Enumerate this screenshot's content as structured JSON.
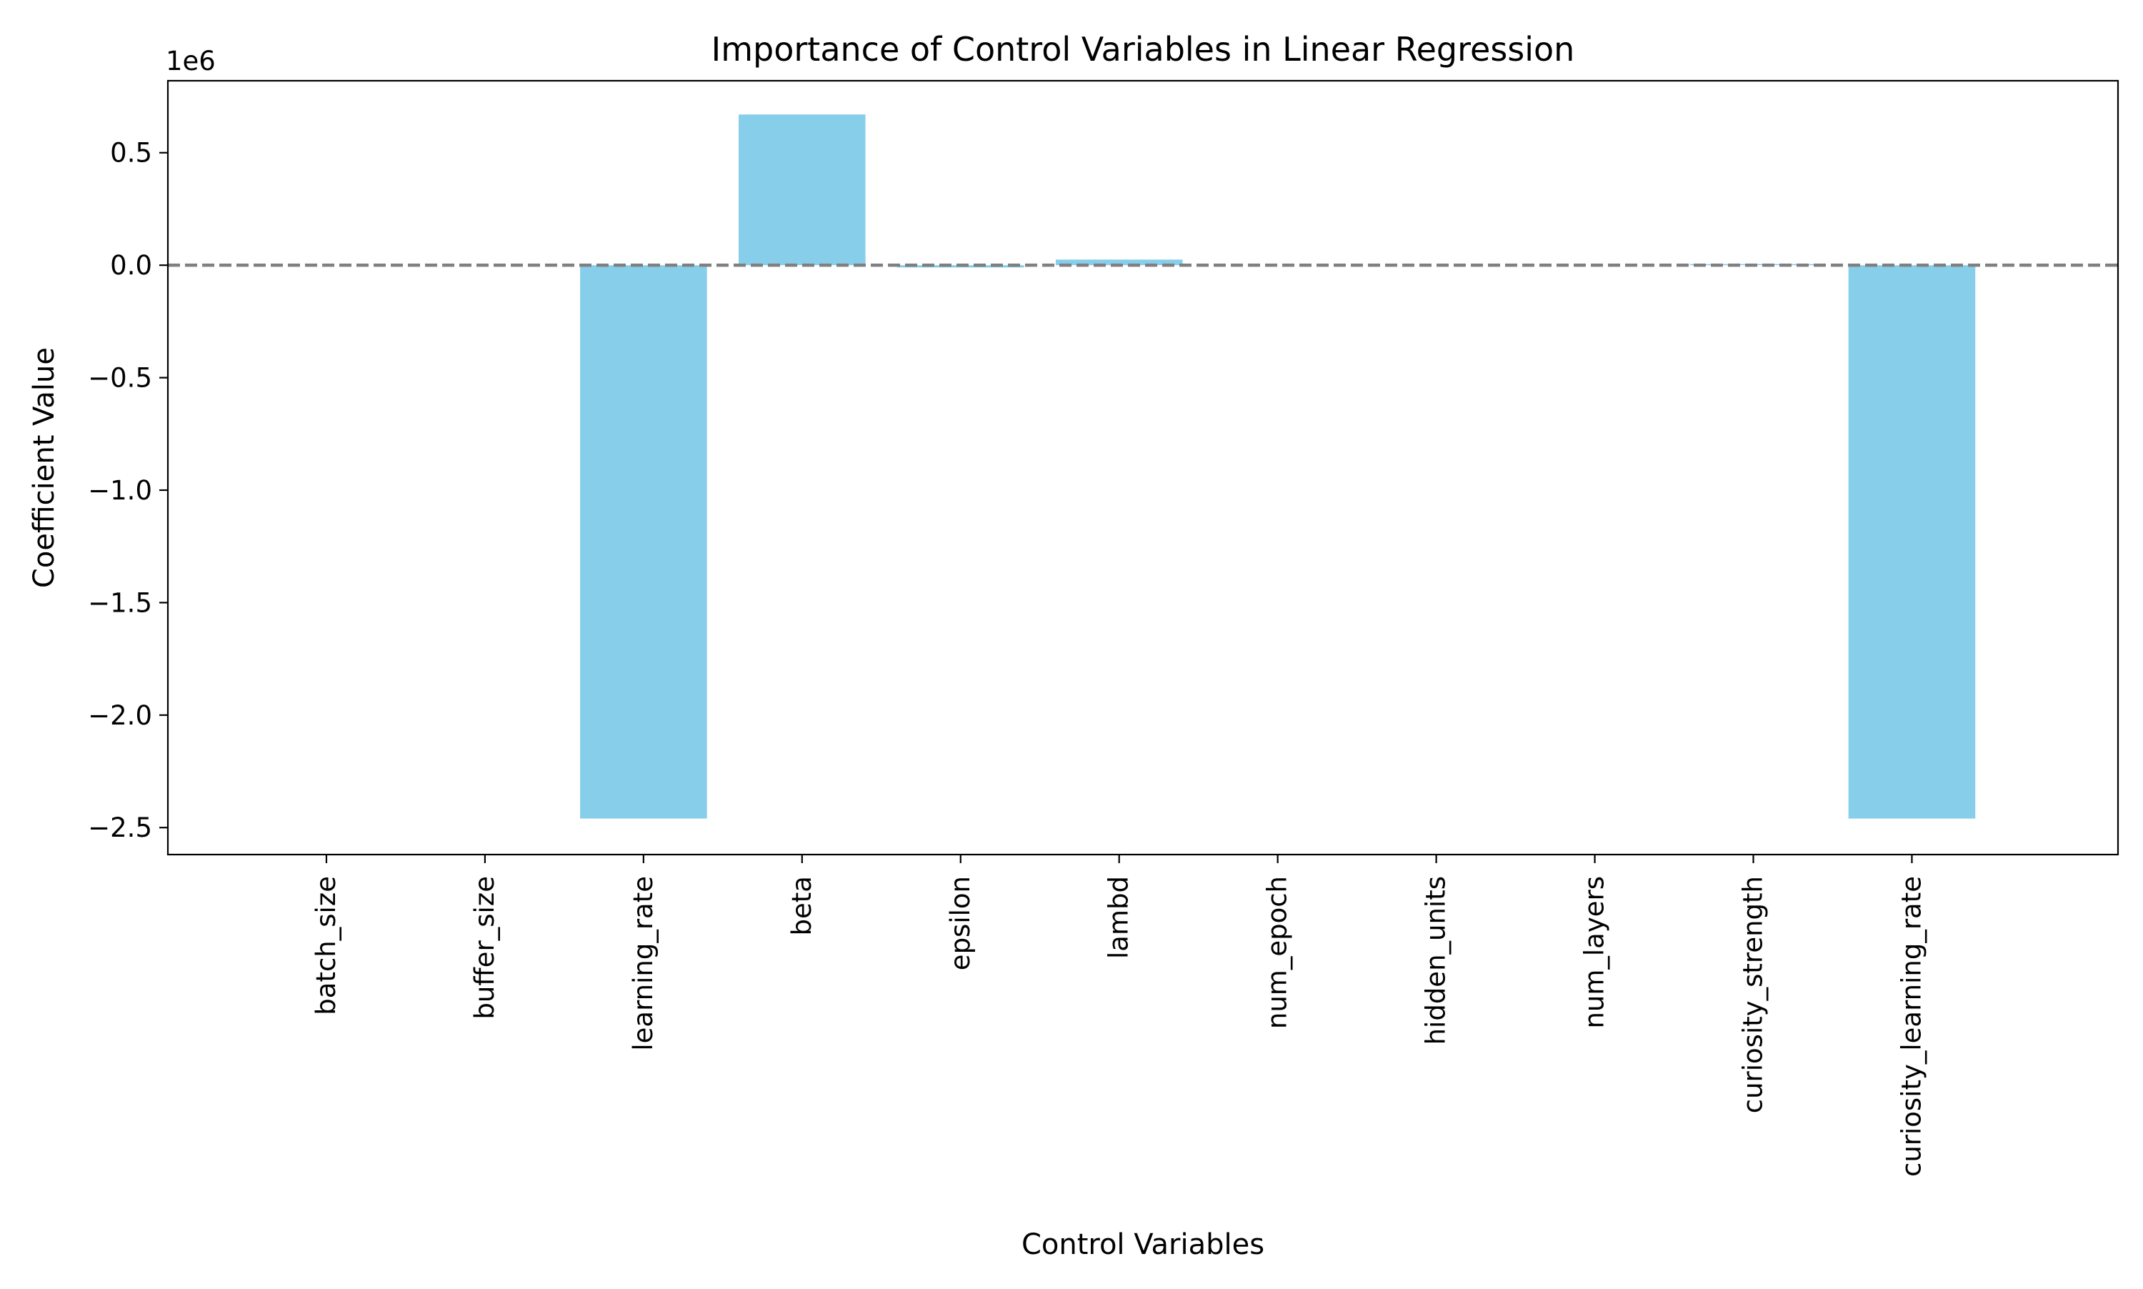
{
  "chart_data": {
    "type": "bar",
    "title": "Importance of Control Variables in Linear Regression",
    "xlabel": "Control Variables",
    "ylabel": "Coefficient Value",
    "y_offset_label": "1e6",
    "y_scale": 1000000,
    "categories": [
      "batch_size",
      "buffer_size",
      "learning_rate",
      "beta",
      "epsilon",
      "lambd",
      "num_epoch",
      "hidden_units",
      "num_layers",
      "curiosity_strength",
      "curiosity_learning_rate"
    ],
    "values": [
      0,
      0,
      -2460000,
      670000,
      -10000,
      25000,
      0,
      0,
      0,
      5000,
      -2460000
    ],
    "ylim": [
      -2620000,
      820000
    ],
    "yticks": [
      -2500000,
      -2000000,
      -1500000,
      -1000000,
      -500000,
      0,
      500000
    ],
    "ytick_labels": [
      "−2.5",
      "−2.0",
      "−1.5",
      "−1.0",
      "−0.5",
      "0.0",
      "0.5"
    ],
    "reference_line": {
      "y": 0,
      "style": "dashed",
      "color": "#808080"
    },
    "bar_color": "#87CEEB",
    "grid": false,
    "legend": "none"
  }
}
